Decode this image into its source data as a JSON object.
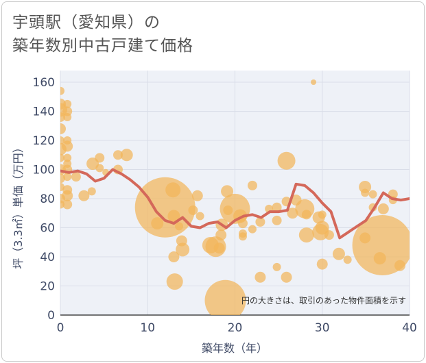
{
  "title_lines": [
    "宇頭駅（愛知県）の",
    "築年数別中古戸建て価格"
  ],
  "note": "円の大きさは、取引のあった物件面積を示す",
  "colors": {
    "bubble": "#f2b55a",
    "line": "#d4685a",
    "grid": "#d9dde8",
    "plot_bg": "#eef1f7",
    "tick": "#3f4a66"
  },
  "chart_data": {
    "type": "scatter",
    "xlabel": "築年数（年）",
    "ylabel": "坪（3.3㎡）単価（万円）",
    "xlim": [
      0,
      40
    ],
    "ylim": [
      0,
      168
    ],
    "x_ticks": [
      0,
      10,
      20,
      30,
      40
    ],
    "y_ticks": [
      0,
      20,
      40,
      60,
      80,
      100,
      120,
      140,
      160
    ],
    "grid": true,
    "bubbles": [
      {
        "x": 0,
        "y": 154,
        "r": 6
      },
      {
        "x": 0,
        "y": 145,
        "r": 8
      },
      {
        "x": 0,
        "y": 141,
        "r": 10
      },
      {
        "x": 0,
        "y": 136,
        "r": 7
      },
      {
        "x": 0,
        "y": 128,
        "r": 8
      },
      {
        "x": 0,
        "y": 120,
        "r": 6
      },
      {
        "x": 0,
        "y": 114,
        "r": 9
      },
      {
        "x": 0,
        "y": 108,
        "r": 6
      },
      {
        "x": 0,
        "y": 100,
        "r": 8
      },
      {
        "x": 0,
        "y": 94,
        "r": 7
      },
      {
        "x": 0,
        "y": 88,
        "r": 6
      },
      {
        "x": 0,
        "y": 80,
        "r": 7
      },
      {
        "x": 0,
        "y": 76,
        "r": 6
      },
      {
        "x": 0.8,
        "y": 145,
        "r": 6
      },
      {
        "x": 0.8,
        "y": 140,
        "r": 7
      },
      {
        "x": 0.8,
        "y": 136,
        "r": 6
      },
      {
        "x": 0.8,
        "y": 120,
        "r": 6
      },
      {
        "x": 0.8,
        "y": 116,
        "r": 8
      },
      {
        "x": 0.8,
        "y": 108,
        "r": 6
      },
      {
        "x": 0.8,
        "y": 104,
        "r": 6
      },
      {
        "x": 0.8,
        "y": 100,
        "r": 7
      },
      {
        "x": 0.8,
        "y": 95,
        "r": 6
      },
      {
        "x": 0.8,
        "y": 86,
        "r": 7
      },
      {
        "x": 0.8,
        "y": 82,
        "r": 8
      },
      {
        "x": 0.8,
        "y": 76,
        "r": 7
      },
      {
        "x": 1.8,
        "y": 95,
        "r": 7
      },
      {
        "x": 2.7,
        "y": 82,
        "r": 8
      },
      {
        "x": 3.7,
        "y": 104,
        "r": 9
      },
      {
        "x": 3.6,
        "y": 85,
        "r": 6
      },
      {
        "x": 4.5,
        "y": 108,
        "r": 7
      },
      {
        "x": 4.5,
        "y": 101,
        "r": 6
      },
      {
        "x": 5.2,
        "y": 98,
        "r": 5
      },
      {
        "x": 6.6,
        "y": 110,
        "r": 7
      },
      {
        "x": 6.6,
        "y": 100,
        "r": 7
      },
      {
        "x": 7.6,
        "y": 110,
        "r": 9
      },
      {
        "x": 11.1,
        "y": 63,
        "r": 9
      },
      {
        "x": 12,
        "y": 74,
        "r": 44
      },
      {
        "x": 12.9,
        "y": 86,
        "r": 11
      },
      {
        "x": 13,
        "y": 68,
        "r": 9
      },
      {
        "x": 13,
        "y": 40,
        "r": 8
      },
      {
        "x": 13.1,
        "y": 23,
        "r": 12
      },
      {
        "x": 13.6,
        "y": 61,
        "r": 6
      },
      {
        "x": 13.9,
        "y": 51,
        "r": 8
      },
      {
        "x": 14,
        "y": 45,
        "r": 10
      },
      {
        "x": 15.7,
        "y": 82,
        "r": 8
      },
      {
        "x": 15.2,
        "y": 72,
        "r": 7
      },
      {
        "x": 16,
        "y": 68,
        "r": 6
      },
      {
        "x": 17.2,
        "y": 48,
        "r": 12
      },
      {
        "x": 17.8,
        "y": 47,
        "r": 15
      },
      {
        "x": 18.2,
        "y": 46,
        "r": 8
      },
      {
        "x": 18.4,
        "y": 55,
        "r": 8
      },
      {
        "x": 18.5,
        "y": 62,
        "r": 9
      },
      {
        "x": 19.1,
        "y": 85,
        "r": 9
      },
      {
        "x": 19.2,
        "y": 72,
        "r": 7
      },
      {
        "x": 18.9,
        "y": 10,
        "r": 30
      },
      {
        "x": 20,
        "y": 73,
        "r": 22
      },
      {
        "x": 20.6,
        "y": 68,
        "r": 10
      },
      {
        "x": 20.9,
        "y": 63,
        "r": 7
      },
      {
        "x": 20.9,
        "y": 56,
        "r": 6
      },
      {
        "x": 20.9,
        "y": 54,
        "r": 6
      },
      {
        "x": 22,
        "y": 89,
        "r": 7
      },
      {
        "x": 22,
        "y": 59,
        "r": 6
      },
      {
        "x": 22.9,
        "y": 64,
        "r": 7
      },
      {
        "x": 22.9,
        "y": 26,
        "r": 8
      },
      {
        "x": 23.9,
        "y": 73,
        "r": 6
      },
      {
        "x": 24.8,
        "y": 74,
        "r": 7
      },
      {
        "x": 24.8,
        "y": 65,
        "r": 7
      },
      {
        "x": 24.8,
        "y": 33,
        "r": 6
      },
      {
        "x": 25.9,
        "y": 106,
        "r": 13
      },
      {
        "x": 25.9,
        "y": 78,
        "r": 7
      },
      {
        "x": 25.9,
        "y": 26,
        "r": 8
      },
      {
        "x": 26.6,
        "y": 70,
        "r": 8
      },
      {
        "x": 27,
        "y": 79,
        "r": 8
      },
      {
        "x": 28,
        "y": 73,
        "r": 14
      },
      {
        "x": 28.2,
        "y": 69,
        "r": 7
      },
      {
        "x": 28.2,
        "y": 55,
        "r": 11
      },
      {
        "x": 29,
        "y": 160,
        "r": 4
      },
      {
        "x": 29.6,
        "y": 67,
        "r": 9
      },
      {
        "x": 29.8,
        "y": 57,
        "r": 12
      },
      {
        "x": 30,
        "y": 69,
        "r": 6
      },
      {
        "x": 30,
        "y": 60,
        "r": 10
      },
      {
        "x": 30,
        "y": 35,
        "r": 8
      },
      {
        "x": 30.8,
        "y": 55,
        "r": 7
      },
      {
        "x": 31.9,
        "y": 42,
        "r": 9
      },
      {
        "x": 32.9,
        "y": 38,
        "r": 6
      },
      {
        "x": 34.9,
        "y": 88,
        "r": 9
      },
      {
        "x": 34.9,
        "y": 84,
        "r": 6
      },
      {
        "x": 34.9,
        "y": 53,
        "r": 8
      },
      {
        "x": 35.8,
        "y": 83,
        "r": 6
      },
      {
        "x": 35.8,
        "y": 74,
        "r": 6
      },
      {
        "x": 36.9,
        "y": 48,
        "r": 44
      },
      {
        "x": 37,
        "y": 73,
        "r": 8
      },
      {
        "x": 36.6,
        "y": 39,
        "r": 9
      },
      {
        "x": 38.1,
        "y": 83,
        "r": 7
      },
      {
        "x": 38.1,
        "y": 79,
        "r": 6
      },
      {
        "x": 38.9,
        "y": 34,
        "r": 8
      }
    ],
    "trend": [
      [
        0,
        99
      ],
      [
        1,
        98
      ],
      [
        2,
        99
      ],
      [
        3,
        97
      ],
      [
        4,
        92
      ],
      [
        5,
        94
      ],
      [
        6,
        100
      ],
      [
        7,
        97
      ],
      [
        8,
        93
      ],
      [
        9,
        88
      ],
      [
        10,
        81
      ],
      [
        11,
        71
      ],
      [
        12,
        65
      ],
      [
        13,
        63
      ],
      [
        14,
        67
      ],
      [
        15,
        61
      ],
      [
        16,
        60
      ],
      [
        17,
        63
      ],
      [
        18,
        64
      ],
      [
        19,
        60
      ],
      [
        20,
        65
      ],
      [
        21,
        68
      ],
      [
        22,
        69
      ],
      [
        23,
        67
      ],
      [
        24,
        71
      ],
      [
        25,
        71
      ],
      [
        26,
        72
      ],
      [
        27,
        90
      ],
      [
        28,
        89
      ],
      [
        29,
        84
      ],
      [
        30,
        77
      ],
      [
        31,
        71
      ],
      [
        32,
        53
      ],
      [
        33,
        57
      ],
      [
        34,
        61
      ],
      [
        35,
        65
      ],
      [
        36,
        74
      ],
      [
        37,
        84
      ],
      [
        38,
        80
      ],
      [
        39,
        79
      ],
      [
        40,
        80
      ]
    ]
  }
}
